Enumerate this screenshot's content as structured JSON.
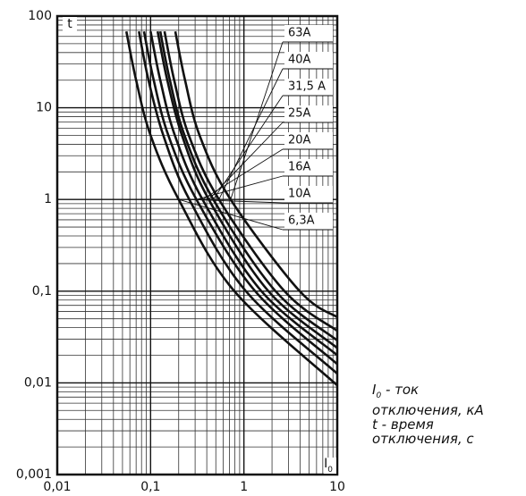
{
  "chart_data": {
    "type": "line",
    "ylabel": "t",
    "xlabel": {
      "symbol": "I",
      "subscript": "0"
    },
    "xscale": "log",
    "yscale": "log",
    "grid": true,
    "xlim": [
      0.01,
      10
    ],
    "xticks": [
      {
        "value": 0.01,
        "label": "0,01"
      },
      {
        "value": 0.1,
        "label": "0,1"
      },
      1,
      10
    ],
    "ylim": [
      0.001,
      100
    ],
    "yticks": [
      {
        "value": 0.001,
        "label": "0,001"
      },
      {
        "value": 0.01,
        "label": "0,01"
      },
      {
        "value": 0.1,
        "label": "0,1"
      },
      1,
      10,
      100
    ],
    "series": [
      {
        "name": "6,3A",
        "color": "#111111",
        "x": [
          0.055,
          0.07,
          0.1,
          0.2,
          0.79,
          10
        ],
        "values": [
          68,
          20,
          5,
          1,
          0.1,
          0.0094
        ]
      },
      {
        "name": "10A",
        "color": "#111111",
        "x": [
          0.075,
          0.095,
          0.137,
          0.26,
          1.05,
          10
        ],
        "values": [
          68,
          20,
          5,
          1,
          0.1,
          0.0126
        ]
      },
      {
        "name": "16A",
        "color": "#111111",
        "x": [
          0.085,
          0.108,
          0.155,
          0.31,
          1.32,
          10
        ],
        "values": [
          68,
          20,
          5,
          1,
          0.1,
          0.016
        ]
      },
      {
        "name": "20A",
        "color": "#111111",
        "x": [
          0.1,
          0.127,
          0.182,
          0.36,
          1.54,
          10
        ],
        "values": [
          68,
          20,
          5,
          1,
          0.1,
          0.02
        ]
      },
      {
        "name": "25A",
        "color": "#111111",
        "x": [
          0.119,
          0.151,
          0.217,
          0.42,
          1.83,
          10
        ],
        "values": [
          68,
          20,
          5,
          1,
          0.1,
          0.024
        ]
      },
      {
        "name": "31,5 A",
        "color": "#111111",
        "x": [
          0.127,
          0.161,
          0.231,
          0.47,
          2.18,
          10
        ],
        "values": [
          68,
          20,
          5,
          1,
          0.1,
          0.029
        ]
      },
      {
        "name": "40A",
        "color": "#111111",
        "x": [
          0.141,
          0.179,
          0.257,
          0.54,
          2.72,
          10
        ],
        "values": [
          68,
          20,
          5,
          1,
          0.1,
          0.037
        ]
      },
      {
        "name": "63A",
        "color": "#111111",
        "x": [
          0.184,
          0.234,
          0.335,
          0.72,
          3.96,
          10
        ],
        "values": [
          68,
          20,
          5,
          1,
          0.1,
          0.052
        ]
      }
    ],
    "notes": [
      {
        "symbol": "I",
        "subscript": "0",
        "lines": [
          "- ток",
          "отключения, кА"
        ]
      },
      {
        "symbol": "t",
        "lines": [
          "- время",
          "отключения, с"
        ]
      }
    ]
  }
}
